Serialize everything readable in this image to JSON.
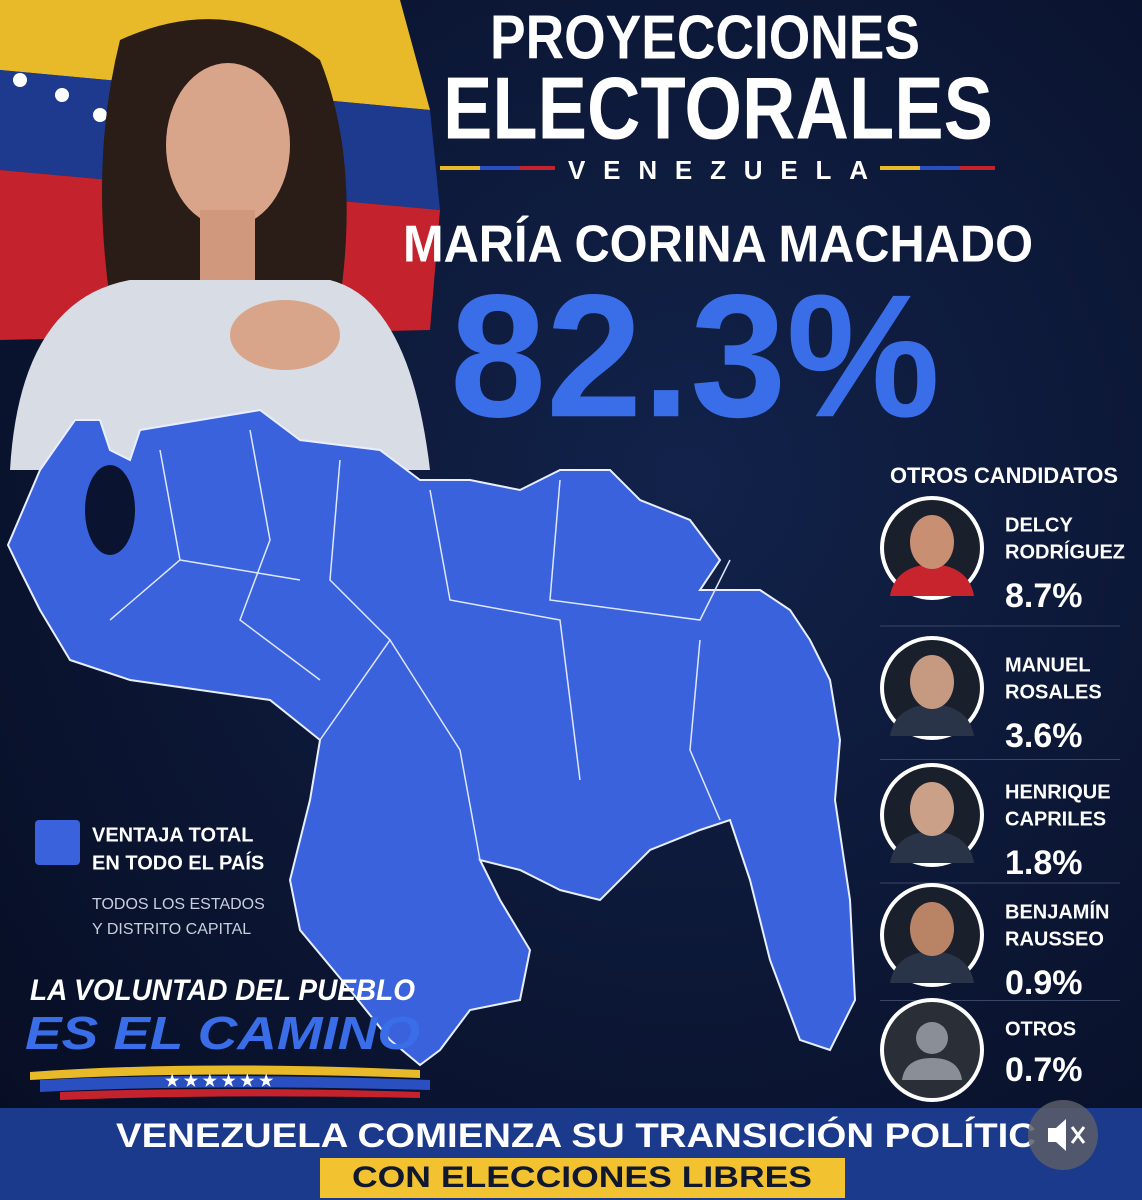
{
  "header": {
    "title_line1": "PROYECCIONES",
    "title_line2": "ELECTORALES",
    "subtitle": "VENEZUELA"
  },
  "main_candidate": {
    "name": "MARÍA CORINA MACHADO",
    "percent": "82.3%"
  },
  "others": {
    "heading": "OTROS CANDIDATOS",
    "candidates": [
      {
        "line1": "DELCY",
        "line2": "RODRÍGUEZ",
        "percent": "8.7%"
      },
      {
        "line1": "MANUEL",
        "line2": "ROSALES",
        "percent": "3.6%"
      },
      {
        "line1": "HENRIQUE",
        "line2": "CAPRILES",
        "percent": "1.8%"
      },
      {
        "line1": "BENJAMÍN",
        "line2": "RAUSSEO",
        "percent": "0.9%"
      },
      {
        "line1": "OTROS",
        "percent": "0.7%"
      }
    ]
  },
  "legend": {
    "line1": "VENTAJA TOTAL",
    "line2": "EN TODO EL PAÍS",
    "note1": "TODOS LOS ESTADOS",
    "note2": "Y DISTRITO CAPITAL"
  },
  "slogan": {
    "line1": "LA VOLUNTAD DEL PUEBLO",
    "line2": "ES EL CAMINO"
  },
  "footer": {
    "line1": "VENEZUELA COMIENZA SU TRANSICIÓN POLÍTIC",
    "line2": "CON ELECCIONES LIBRES"
  }
}
